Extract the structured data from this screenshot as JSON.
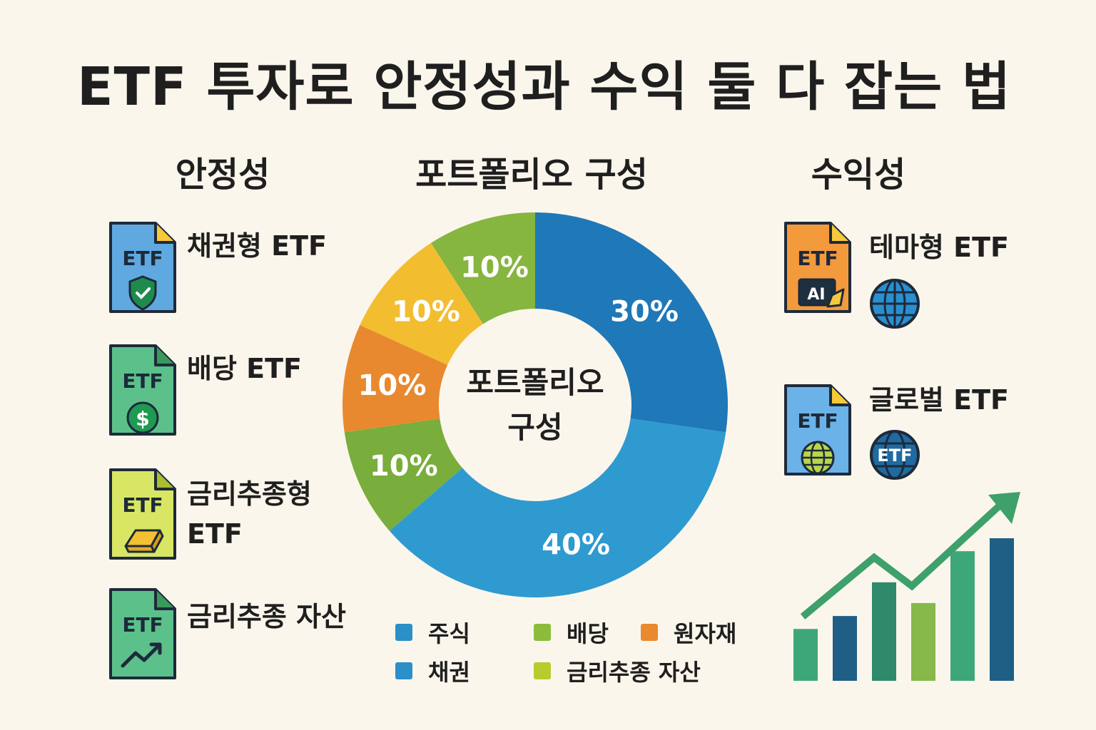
{
  "title": "ETF 투자로 안정성과 수익 둘 다 잡는 법",
  "stability": {
    "heading": "안정성",
    "items": [
      {
        "label": "채권형 ETF",
        "doc_text": "ETF",
        "color": "#5fa8e0",
        "badge": "shield-check-icon"
      },
      {
        "label": "배당 ETF",
        "doc_text": "ETF",
        "color": "#5cc08a",
        "badge": "dollar-coin-icon"
      },
      {
        "label_line1": "금리추종형",
        "label_line2": "ETF",
        "doc_text": "ETF",
        "color": "#d8e664",
        "badge": "gold-bar-icon"
      },
      {
        "label": "금리추종 자산",
        "doc_text": "ETF",
        "color": "#5cc08a",
        "badge": "trend-arrow-icon"
      }
    ]
  },
  "portfolio": {
    "heading": "포트폴리오 구성",
    "center_line1": "포트폴리오",
    "center_line2": "구성"
  },
  "returns": {
    "heading": "수익성",
    "items": [
      {
        "label": "테마형 ETF",
        "doc_text": "ETF",
        "sub_text": "AI",
        "color": "#f39a3c",
        "badge": "globe-icon"
      },
      {
        "label": "글로벌 ETF",
        "doc_text": "ETF",
        "color": "#6bb2e8",
        "badge": "globe-etf-icon",
        "badge_text": "ETF"
      }
    ]
  },
  "legend": [
    {
      "label": "주식",
      "color": "#2b8fc8"
    },
    {
      "label": "배당",
      "color": "#8dbb3c"
    },
    {
      "label": "원자재",
      "color": "#e98a2e"
    },
    {
      "label": "채권",
      "color": "#2b8fc8"
    },
    {
      "label": "금리추종 자산",
      "color": "#b8cc2e"
    }
  ],
  "chart_data": {
    "type": "pie",
    "donut": true,
    "slices": [
      {
        "label": "30%",
        "value": 30,
        "color": "#1f78b8"
      },
      {
        "label": "40%",
        "value": 40,
        "color": "#2f9ad0"
      },
      {
        "label": "10%",
        "value": 10,
        "color": "#79ad3c"
      },
      {
        "label": "10%",
        "value": 10,
        "color": "#e8892f"
      },
      {
        "label": "10%",
        "value": 10,
        "color": "#f2bd2f"
      },
      {
        "label": "10%",
        "value": 10,
        "color": "#86b540"
      }
    ],
    "start_angle_deg": 0,
    "direction": "clockwise"
  },
  "growth_chart": {
    "type": "bar",
    "values": [
      2,
      2.5,
      3.8,
      3,
      5,
      5.5
    ],
    "colors": [
      "#3ea77a",
      "#1f5f85",
      "#2f8a6c",
      "#86b84a",
      "#3ea77a",
      "#1f5f85"
    ],
    "arrow_color": "#3ea06a"
  }
}
